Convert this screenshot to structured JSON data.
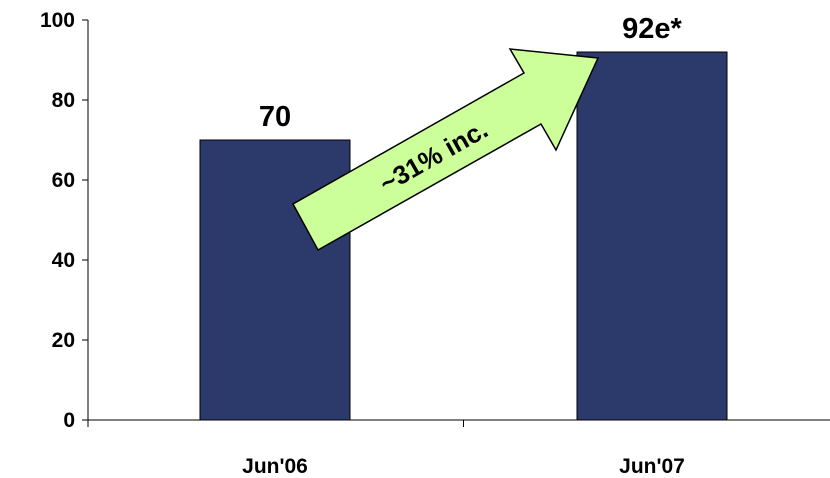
{
  "chart_data": {
    "type": "bar",
    "categories": [
      "Jun'06",
      "Jun'07"
    ],
    "values": [
      70,
      92
    ],
    "data_labels": [
      "70",
      "92e*"
    ],
    "ylim": [
      0,
      100
    ],
    "yticks": [
      0,
      20,
      40,
      60,
      80,
      100
    ],
    "grid": false,
    "legend": "none",
    "annotations": [
      {
        "text": "~31% inc.",
        "type": "arrow",
        "from": "Jun'06",
        "to": "Jun'07"
      }
    ]
  },
  "colors": {
    "bar": "#2b3a6b",
    "arrow_fill": "#ccff99",
    "axis": "#000000"
  }
}
